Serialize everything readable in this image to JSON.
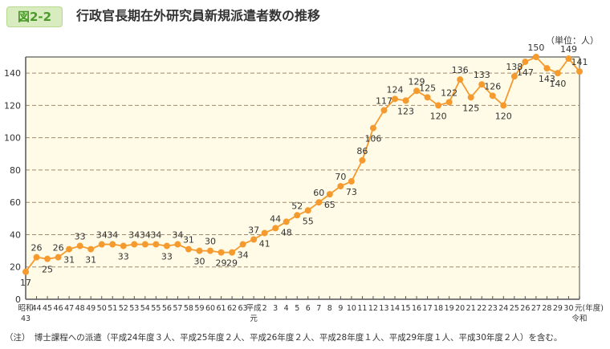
{
  "figure_label": "図2-2",
  "title": "行政官長期在外研究員新規派遣者数の推移",
  "unit": "（単位：人）",
  "note": "（注）　博士課程への派遣（平成24年度３人、平成25年度２人、平成26年度２人、平成28年度１人、平成29年度１人、平成30年度２人）を含む。",
  "chart_data": {
    "type": "line",
    "title": "行政官長期在外研究員新規派遣者数の推移",
    "ylabel": "（単位：人）",
    "xlabel": "(年度)",
    "ylim": [
      0,
      150
    ],
    "yticks": [
      0,
      20,
      40,
      60,
      80,
      100,
      120,
      140
    ],
    "grid": true,
    "color": "#f59a2e",
    "x": [
      "昭和43",
      "44",
      "45",
      "46",
      "47",
      "48",
      "49",
      "50",
      "51",
      "52",
      "53",
      "54",
      "55",
      "56",
      "57",
      "58",
      "59",
      "60",
      "61",
      "62",
      "63",
      "平成元",
      "2",
      "3",
      "4",
      "5",
      "6",
      "7",
      "8",
      "9",
      "10",
      "11",
      "12",
      "13",
      "14",
      "15",
      "16",
      "17",
      "18",
      "19",
      "20",
      "21",
      "22",
      "23",
      "24",
      "25",
      "26",
      "27",
      "28",
      "29",
      "30",
      "令和元"
    ],
    "values": [
      17,
      26,
      25,
      26,
      31,
      33,
      31,
      34,
      34,
      33,
      34,
      34,
      34,
      33,
      34,
      31,
      30,
      30,
      29,
      29,
      34,
      37,
      41,
      44,
      48,
      52,
      55,
      60,
      65,
      70,
      73,
      86,
      106,
      117,
      124,
      123,
      129,
      125,
      120,
      122,
      136,
      125,
      133,
      126,
      120,
      138,
      147,
      150,
      143,
      140,
      149,
      141
    ]
  }
}
